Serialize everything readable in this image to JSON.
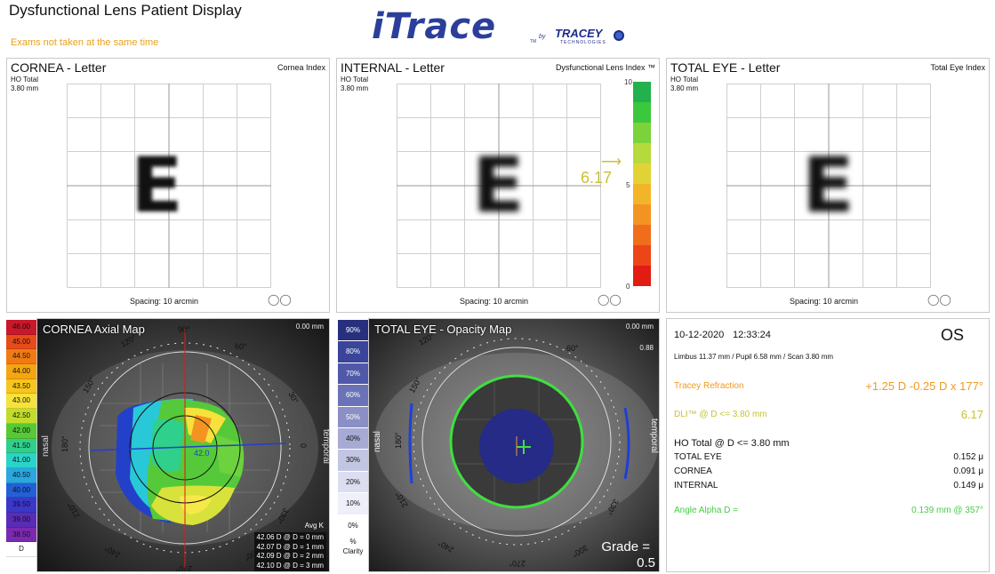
{
  "header": {
    "title": "Dysfunctional Lens Patient Display",
    "warning": "Exams not taken at the same time",
    "logo_text": "iTrace",
    "logo_tm": "TM",
    "logo_by": "by",
    "partner_logo": "TRACEY",
    "partner_sub": "TECHNOLOGIES"
  },
  "panels": {
    "cornea_letter": {
      "title": "CORNEA - Letter",
      "index_label": "Cornea Index",
      "ho_total": "HO Total",
      "size": "3.80 mm",
      "spacing": "Spacing:  10 arcmin",
      "letter": "E"
    },
    "internal_letter": {
      "title": "INTERNAL - Letter",
      "index_label": "Dysfunctional Lens Index ™",
      "ho_total": "HO Total",
      "size": "3.80 mm",
      "spacing": "Spacing:  10 arcmin",
      "letter": "E",
      "dli_value": "6.17",
      "scale_max": "10",
      "scale_mid": "5",
      "scale_min": "0"
    },
    "total_letter": {
      "title": "TOTAL EYE - Letter",
      "index_label": "Total Eye Index",
      "ho_total": "HO Total",
      "size": "3.80 mm",
      "spacing": "Spacing:  10 arcmin",
      "letter": "E"
    }
  },
  "axial_map": {
    "title": "CORNEA  Axial Map",
    "zero_mm": "0.00 mm",
    "deg_90": "90°",
    "deg_60": "60°",
    "deg_120": "120°",
    "deg_150": "150°",
    "deg_180": "180°",
    "deg_30": "30°",
    "deg_0": "0",
    "deg_210": "210°",
    "deg_240": "240°",
    "deg_270": "270°",
    "deg_300": "300°",
    "deg_330": "330°",
    "nasal": "nasal",
    "temporal": "temporal",
    "k_value": "42.0",
    "avg_k_title": "Avg K",
    "avg_k": [
      "42.06 D @ D = 0 mm",
      "42.07 D @ D = 1 mm",
      "42.09 D @ D = 2 mm",
      "42.10 D @ D = 3 mm"
    ],
    "legend": [
      "46.00",
      "45.00",
      "44.50",
      "44.00",
      "43.50",
      "43.00",
      "42.50",
      "42.00",
      "41.50",
      "41.00",
      "40.50",
      "40.00",
      "39.50",
      "39.00",
      "38.50",
      "D"
    ],
    "legend_colors": [
      "#c8182a",
      "#e84b1a",
      "#f17a12",
      "#f5a512",
      "#f7c51b",
      "#f6e23a",
      "#c2dc2a",
      "#56c935",
      "#2fcf8c",
      "#29d4c8",
      "#2aa6e0",
      "#2360d6",
      "#3a37c9",
      "#5a2bb7",
      "#7b2ab0",
      "#ffffff"
    ]
  },
  "opacity_map": {
    "title": "TOTAL EYE - Opacity Map",
    "zero_mm": "0.00 mm",
    "dot88": "0.88",
    "nasal": "nasal",
    "temporal": "temporal",
    "deg_60": "60°",
    "deg_120": "120°",
    "deg_150": "150°",
    "deg_180": "180°",
    "deg_210": "210°",
    "deg_240": "240°",
    "deg_270": "270°",
    "deg_300": "300°",
    "deg_330": "330°",
    "grade_label": "Grade =",
    "grade_value": "0.5",
    "legend": [
      "90%",
      "80%",
      "70%",
      "60%",
      "50%",
      "40%",
      "30%",
      "20%",
      "10%",
      "0%",
      "%\nClarity"
    ],
    "legend_colors": [
      "#28307e",
      "#3a449a",
      "#5059a8",
      "#6b72b8",
      "#8a8fc6",
      "#a7abd4",
      "#c3c6e2",
      "#dcdef0",
      "#eeeff8",
      "#ffffff",
      "#ffffff"
    ]
  },
  "info": {
    "date": "10-12-2020",
    "time": "12:33:24",
    "eye": "OS",
    "measurements": "Limbus 11.37 mm  /  Pupil 6.58 mm  /  Scan 3.80 mm",
    "refraction_label": "Tracey Refraction",
    "refraction_value": "+1.25 D -0.25 D x 177°",
    "dli_label": "DLI™ @ D <= 3.80 mm",
    "dli_value": "6.17",
    "ho_title": "HO Total @ D <= 3.80 mm",
    "rows": [
      {
        "label": "TOTAL EYE",
        "value": "0.152 μ"
      },
      {
        "label": "CORNEA",
        "value": "0.091 μ"
      },
      {
        "label": "INTERNAL",
        "value": "0.149 μ"
      }
    ],
    "alpha_label": "Angle Alpha  D =",
    "alpha_value": "0.139 mm @ 357°"
  },
  "colors": {
    "accent_orange": "#ef9a21",
    "accent_yellow": "#c6c231",
    "accent_green": "#44cc44"
  }
}
